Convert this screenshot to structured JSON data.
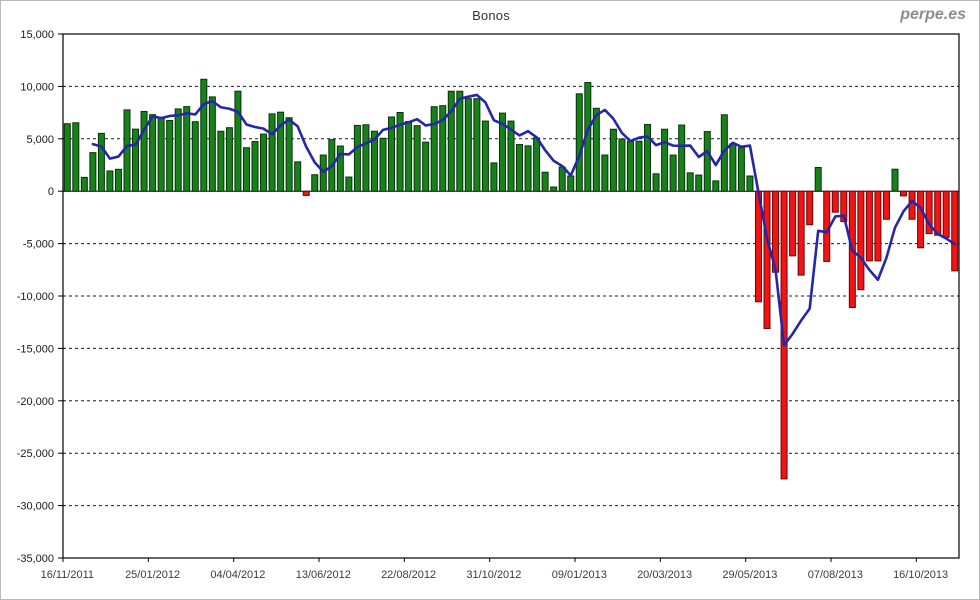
{
  "title": "Bonos",
  "watermark": "perpe.es",
  "chart_data": {
    "type": "bar",
    "title": "Bonos",
    "description": "Weekly bar series with 4-week moving average line",
    "ylim": [
      -35000,
      15000
    ],
    "y_tick_step": 5000,
    "y_tick_labels": [
      "15,000",
      "10,000",
      "5,000",
      "0",
      "-5,000",
      "-10,000",
      "-15,000",
      "-20,000",
      "-25,000",
      "-30,000",
      "-35,000"
    ],
    "x_tick_labels": [
      "16/11/2011",
      "25/01/2012",
      "04/04/2012",
      "13/06/2012",
      "22/08/2012",
      "31/10/2012",
      "09/01/2013",
      "20/03/2013",
      "29/05/2013",
      "07/08/2013",
      "16/10/2013"
    ],
    "x_tick_every": 10,
    "grid": "horizontal-dashed",
    "legend": "none",
    "colors": {
      "bar_positive": "#17821b",
      "bar_positive_border": "#063306",
      "bar_negative": "#f01414",
      "bar_negative_border": "#6b0404",
      "line": "#2626aa",
      "axis": "#000000",
      "y_label": "#1a1a1a",
      "x_label": "#3d3846"
    },
    "dates": [
      "16/11/2011",
      "23/11/2011",
      "30/11/2011",
      "07/12/2011",
      "14/12/2011",
      "21/12/2011",
      "28/12/2011",
      "04/01/2012",
      "11/01/2012",
      "18/01/2012",
      "25/01/2012",
      "01/02/2012",
      "08/02/2012",
      "15/02/2012",
      "22/02/2012",
      "29/02/2012",
      "07/03/2012",
      "14/03/2012",
      "21/03/2012",
      "28/03/2012",
      "04/04/2012",
      "11/04/2012",
      "18/04/2012",
      "25/04/2012",
      "02/05/2012",
      "09/05/2012",
      "16/05/2012",
      "23/05/2012",
      "30/05/2012",
      "06/06/2012",
      "13/06/2012",
      "20/06/2012",
      "27/06/2012",
      "04/07/2012",
      "11/07/2012",
      "18/07/2012",
      "25/07/2012",
      "01/08/2012",
      "08/08/2012",
      "15/08/2012",
      "22/08/2012",
      "29/08/2012",
      "05/09/2012",
      "12/09/2012",
      "19/09/2012",
      "26/09/2012",
      "03/10/2012",
      "10/10/2012",
      "17/10/2012",
      "24/10/2012",
      "31/10/2012",
      "07/11/2012",
      "14/11/2012",
      "21/11/2012",
      "28/11/2012",
      "05/12/2012",
      "12/12/2012",
      "19/12/2012",
      "26/12/2012",
      "02/01/2013",
      "09/01/2013",
      "16/01/2013",
      "23/01/2013",
      "30/01/2013",
      "06/02/2013",
      "13/02/2013",
      "20/02/2013",
      "27/02/2013",
      "06/03/2013",
      "13/03/2013",
      "20/03/2013",
      "27/03/2013",
      "03/04/2013",
      "10/04/2013",
      "17/04/2013",
      "24/04/2013",
      "01/05/2013",
      "08/05/2013",
      "15/05/2013",
      "22/05/2013",
      "29/05/2013",
      "05/06/2013",
      "12/06/2013",
      "19/06/2013",
      "26/06/2013",
      "03/07/2013",
      "10/07/2013",
      "17/07/2013",
      "24/07/2013",
      "31/07/2013",
      "07/08/2013",
      "14/08/2013",
      "21/08/2013",
      "28/08/2013",
      "04/09/2013",
      "11/09/2013",
      "18/09/2013",
      "25/09/2013",
      "02/10/2013",
      "09/10/2013",
      "16/10/2013",
      "23/10/2013",
      "30/10/2013",
      "06/11/2013",
      "13/11/2013"
    ],
    "bars": {
      "values": [
        6440,
        6530,
        1320,
        3680,
        5520,
        1930,
        2090,
        7760,
        5920,
        7610,
        7300,
        7060,
        6750,
        7850,
        8070,
        6630,
        10680,
        9000,
        5720,
        6060,
        9540,
        4150,
        4740,
        5450,
        7380,
        7540,
        7010,
        2800,
        -400,
        1570,
        3450,
        4920,
        4310,
        1350,
        6280,
        6340,
        5720,
        5050,
        7080,
        7510,
        6650,
        6250,
        4680,
        8060,
        8160,
        9540,
        9540,
        8830,
        8830,
        6690,
        2700,
        7450,
        6690,
        4450,
        4330,
        5080,
        1810,
        400,
        2310,
        1450,
        9290,
        10370,
        7910,
        3450,
        5910,
        4980,
        4770,
        4770,
        6370,
        1660,
        5910,
        3450,
        6310,
        1750,
        1540,
        5690,
        985,
        7290,
        4520,
        4150,
        1450,
        -10550,
        -13100,
        -7730,
        -27450,
        -6170,
        -8010,
        -3200,
        2260,
        -6700,
        -2000,
        -2900,
        -11100,
        -9400,
        -6650,
        -6650,
        -2675,
        2100,
        -450,
        -2675,
        -5400,
        -4040,
        -4200,
        -4400,
        -7600
      ]
    },
    "line": {
      "description": "4-week moving average of bars",
      "window": 4,
      "values": [
        null,
        null,
        null,
        4493,
        4263,
        3113,
        3305,
        4325,
        4425,
        5845,
        7148,
        6973,
        7180,
        7240,
        7433,
        7325,
        8308,
        8595,
        8008,
        7865,
        7580,
        6368,
        6123,
        5970,
        5430,
        6278,
        6845,
        6183,
        4238,
        2745,
        1855,
        2385,
        3563,
        3508,
        4215,
        4570,
        4923,
        5848,
        6048,
        6340,
        6573,
        6873,
        6273,
        6410,
        6788,
        7610,
        8825,
        9018,
        9185,
        8473,
        6763,
        6418,
        5883,
        5323,
        5730,
        5138,
        3918,
        2905,
        2400,
        1493,
        3363,
        5855,
        7255,
        7755,
        6910,
        5563,
        4778,
        5108,
        5223,
        4393,
        4678,
        4348,
        4333,
        4355,
        3263,
        3823,
        2491,
        3876,
        4621,
        4236,
        4353,
        -108,
        -4513,
        -7483,
        -14708,
        -13613,
        -12340,
        -11208,
        -3780,
        -3913,
        -2410,
        -2335,
        -5675,
        -6350,
        -7513,
        -8450,
        -6344,
        -3469,
        -1919,
        -925,
        -1606,
        -3141,
        -4079,
        -4510,
        -5060
      ]
    }
  }
}
